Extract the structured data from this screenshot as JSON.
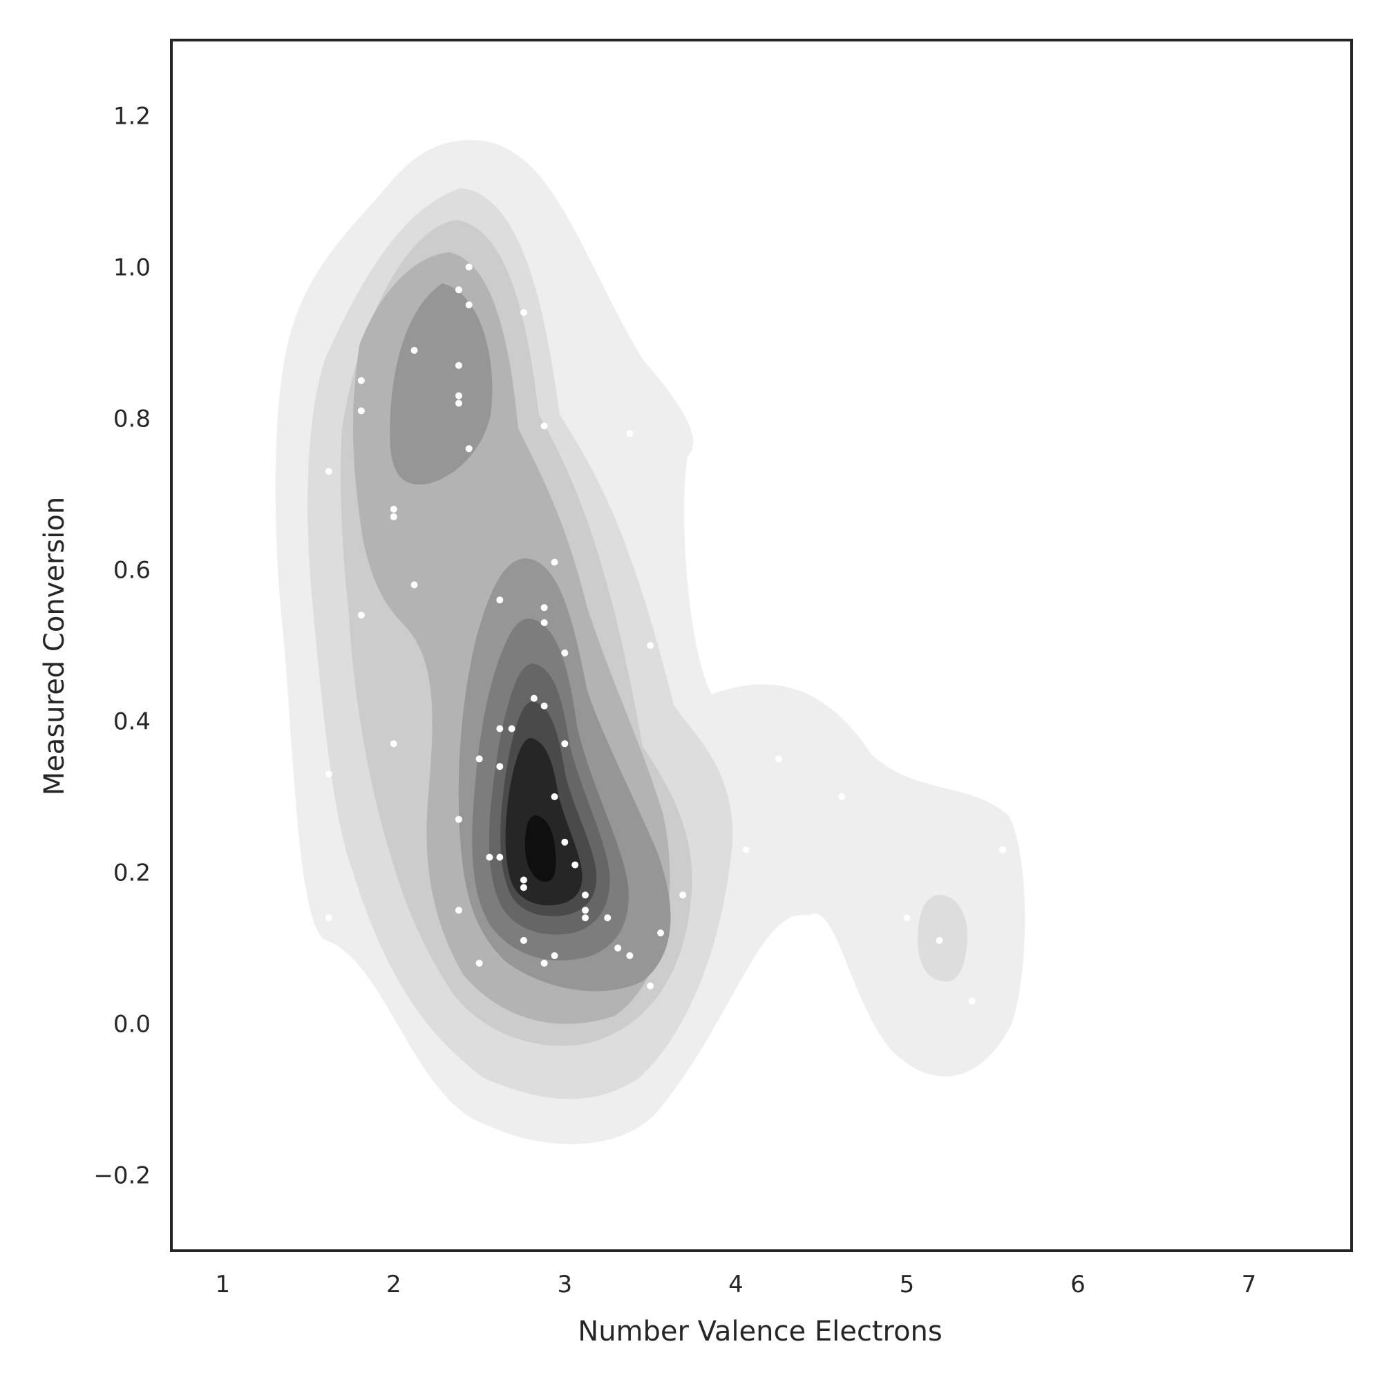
{
  "chart_data": {
    "type": "scatter",
    "subtype": "kde-density-contour",
    "title": "",
    "xlabel": "Number Valence Electrons",
    "ylabel": "Measured Conversion",
    "xlim": [
      0.7,
      7.6
    ],
    "ylim": [
      -0.3,
      1.3
    ],
    "xticks": [
      1,
      2,
      3,
      4,
      5,
      6,
      7
    ],
    "yticks": [
      -0.2,
      0.0,
      0.2,
      0.4,
      0.6,
      0.8,
      1.0,
      1.2
    ],
    "xtick_labels": [
      "1",
      "2",
      "3",
      "4",
      "5",
      "6",
      "7"
    ],
    "ytick_labels": [
      "−0.2",
      "0.0",
      "0.2",
      "0.4",
      "0.6",
      "0.8",
      "1.0",
      "1.2"
    ],
    "grid": false,
    "legend": "none",
    "colors": {
      "points": "#ffffff",
      "levels": [
        "#eeeeee",
        "#dddddd",
        "#cccccc",
        "#b3b3b3",
        "#969696",
        "#7d7d7d",
        "#666666",
        "#4a4a4a",
        "#262626",
        "#0f0f0f"
      ],
      "frame": "#262626"
    },
    "points": [
      {
        "x": 2.44,
        "y": 1.0
      },
      {
        "x": 2.38,
        "y": 0.97
      },
      {
        "x": 2.44,
        "y": 0.95
      },
      {
        "x": 2.76,
        "y": 0.94
      },
      {
        "x": 2.12,
        "y": 0.89
      },
      {
        "x": 2.38,
        "y": 0.87
      },
      {
        "x": 1.81,
        "y": 0.85
      },
      {
        "x": 2.38,
        "y": 0.83
      },
      {
        "x": 2.38,
        "y": 0.82
      },
      {
        "x": 1.81,
        "y": 0.81
      },
      {
        "x": 2.88,
        "y": 0.79
      },
      {
        "x": 3.38,
        "y": 0.78
      },
      {
        "x": 2.44,
        "y": 0.76
      },
      {
        "x": 1.62,
        "y": 0.73
      },
      {
        "x": 2.0,
        "y": 0.68
      },
      {
        "x": 2.0,
        "y": 0.67
      },
      {
        "x": 2.94,
        "y": 0.61
      },
      {
        "x": 2.12,
        "y": 0.58
      },
      {
        "x": 2.62,
        "y": 0.56
      },
      {
        "x": 2.88,
        "y": 0.55
      },
      {
        "x": 1.81,
        "y": 0.54
      },
      {
        "x": 2.88,
        "y": 0.53
      },
      {
        "x": 3.5,
        "y": 0.5
      },
      {
        "x": 3.0,
        "y": 0.49
      },
      {
        "x": 2.82,
        "y": 0.43
      },
      {
        "x": 2.88,
        "y": 0.42
      },
      {
        "x": 2.62,
        "y": 0.39
      },
      {
        "x": 2.69,
        "y": 0.39
      },
      {
        "x": 2.0,
        "y": 0.37
      },
      {
        "x": 3.0,
        "y": 0.37
      },
      {
        "x": 2.5,
        "y": 0.35
      },
      {
        "x": 4.25,
        "y": 0.35
      },
      {
        "x": 2.62,
        "y": 0.34
      },
      {
        "x": 1.62,
        "y": 0.33
      },
      {
        "x": 2.94,
        "y": 0.3
      },
      {
        "x": 4.62,
        "y": 0.3
      },
      {
        "x": 2.38,
        "y": 0.27
      },
      {
        "x": 3.0,
        "y": 0.24
      },
      {
        "x": 4.06,
        "y": 0.23
      },
      {
        "x": 5.56,
        "y": 0.23
      },
      {
        "x": 2.56,
        "y": 0.22
      },
      {
        "x": 2.62,
        "y": 0.22
      },
      {
        "x": 3.06,
        "y": 0.21
      },
      {
        "x": 2.76,
        "y": 0.19
      },
      {
        "x": 2.76,
        "y": 0.18
      },
      {
        "x": 3.12,
        "y": 0.17
      },
      {
        "x": 3.69,
        "y": 0.17
      },
      {
        "x": 2.38,
        "y": 0.15
      },
      {
        "x": 3.12,
        "y": 0.15
      },
      {
        "x": 3.12,
        "y": 0.14
      },
      {
        "x": 3.25,
        "y": 0.14
      },
      {
        "x": 1.62,
        "y": 0.14
      },
      {
        "x": 5.0,
        "y": 0.14
      },
      {
        "x": 3.56,
        "y": 0.12
      },
      {
        "x": 2.76,
        "y": 0.11
      },
      {
        "x": 5.19,
        "y": 0.11
      },
      {
        "x": 3.31,
        "y": 0.1
      },
      {
        "x": 3.38,
        "y": 0.09
      },
      {
        "x": 2.94,
        "y": 0.09
      },
      {
        "x": 2.5,
        "y": 0.08
      },
      {
        "x": 2.88,
        "y": 0.08
      },
      {
        "x": 3.5,
        "y": 0.05
      },
      {
        "x": 5.38,
        "y": 0.03
      }
    ]
  }
}
